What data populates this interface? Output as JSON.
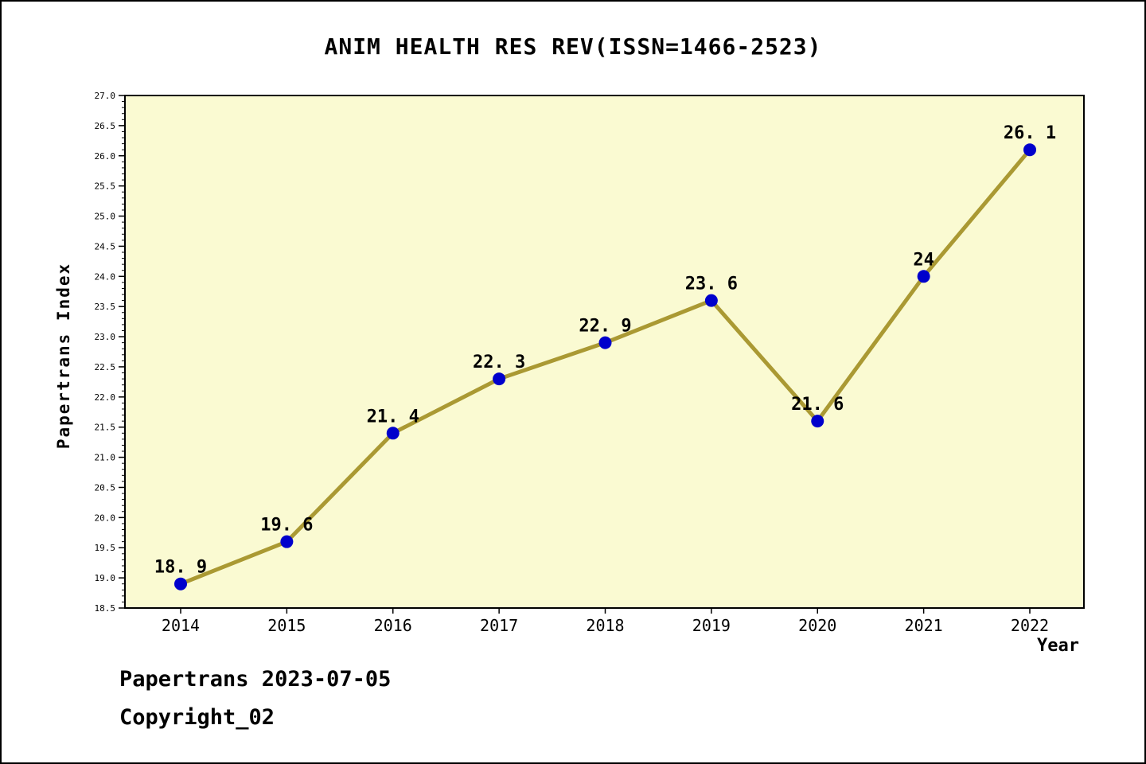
{
  "footer": {
    "line1": "Papertrans 2023-07-05",
    "line2": "Copyright_02"
  },
  "chart_data": {
    "type": "line",
    "title": "ANIM HEALTH RES REV(ISSN=1466-2523)",
    "xlabel": "Year",
    "ylabel": "Papertrans Index",
    "x": [
      2014,
      2015,
      2016,
      2017,
      2018,
      2019,
      2020,
      2021,
      2022
    ],
    "values": [
      18.9,
      19.6,
      21.4,
      22.3,
      22.9,
      23.6,
      21.6,
      24,
      26.1
    ],
    "point_labels": [
      "18.9",
      "19.6",
      "21.4",
      "22.3",
      "22.9",
      "23.6",
      "21.6",
      "24",
      "26.1"
    ],
    "ylim": [
      18.5,
      27.0
    ],
    "ytick_major": 0.5,
    "ytick_minor": 0.1,
    "grid": false,
    "legend": null,
    "colors": {
      "line": "#AA9933",
      "marker": "#0000CC",
      "plot_bg": "#FAFAD2",
      "axis": "#000000",
      "page_bg": "#FFFFFF"
    }
  }
}
